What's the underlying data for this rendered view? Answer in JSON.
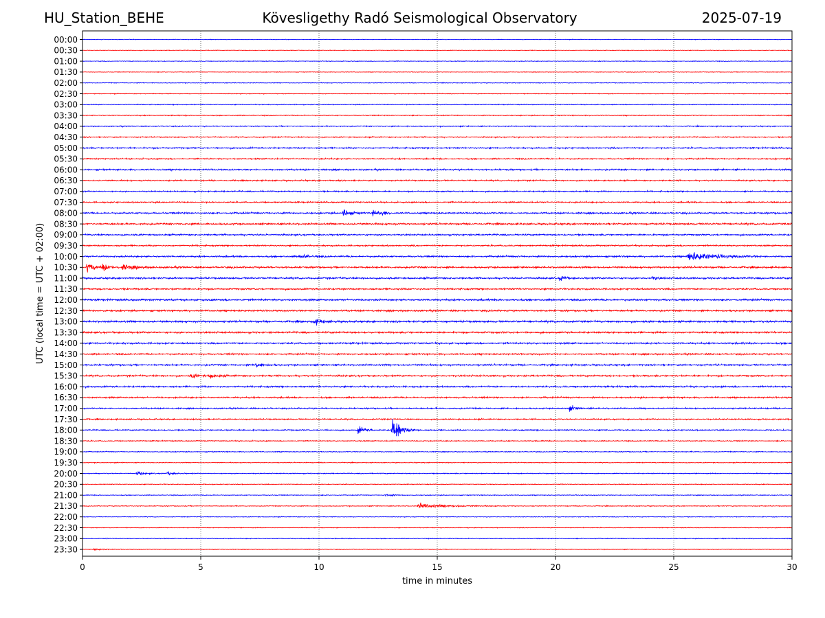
{
  "header": {
    "station": "HU_Station_BEHE",
    "title": "Kövesligethy Radó Seismological Observatory",
    "date": "2025-07-19"
  },
  "chart_data": {
    "type": "line",
    "title": "Kövesligethy Radó Seismological Observatory",
    "xlabel": "time in minutes",
    "ylabel": "UTC (local time = UTC + 02:00)",
    "xlim": [
      0,
      30
    ],
    "xticks": [
      "0",
      "5",
      "10",
      "15",
      "20",
      "25",
      "30"
    ],
    "grid": "vertical dotted lines at 5-minute intervals",
    "trace_colors": [
      "#0000ff",
      "#ff0000"
    ],
    "rows": [
      "00:00",
      "00:30",
      "01:00",
      "01:30",
      "02:00",
      "02:30",
      "03:00",
      "03:30",
      "04:00",
      "04:30",
      "05:00",
      "05:30",
      "06:00",
      "06:30",
      "07:00",
      "07:30",
      "08:00",
      "08:30",
      "09:00",
      "09:30",
      "10:00",
      "10:30",
      "11:00",
      "11:30",
      "12:00",
      "12:30",
      "13:00",
      "13:30",
      "14:00",
      "14:30",
      "15:00",
      "15:30",
      "16:00",
      "16:30",
      "17:00",
      "17:30",
      "18:00",
      "18:30",
      "19:00",
      "19:30",
      "20:00",
      "20:30",
      "21:00",
      "21:30",
      "22:00",
      "22:30",
      "23:00",
      "23:30"
    ],
    "noise_level": [
      0.5,
      0.5,
      0.6,
      0.5,
      0.6,
      0.6,
      0.7,
      0.8,
      0.9,
      1.0,
      1.3,
      1.2,
      1.4,
      1.2,
      1.2,
      1.3,
      1.5,
      1.6,
      1.4,
      1.3,
      1.5,
      1.6,
      1.5,
      1.4,
      1.6,
      1.5,
      1.7,
      1.6,
      1.5,
      1.4,
      1.5,
      1.5,
      1.5,
      1.4,
      1.2,
      1.1,
      1.1,
      0.9,
      0.8,
      0.7,
      0.8,
      0.7,
      0.7,
      0.7,
      0.6,
      0.6,
      0.6,
      0.5
    ],
    "events": [
      {
        "row": "08:00",
        "minute": 11.05,
        "amplitude": 11,
        "duration": 0.35
      },
      {
        "row": "08:00",
        "minute": 12.3,
        "amplitude": 6,
        "duration": 0.4
      },
      {
        "row": "08:00",
        "minute": 12.7,
        "amplitude": 4,
        "duration": 0.2
      },
      {
        "row": "10:00",
        "minute": 9.2,
        "amplitude": 4,
        "duration": 0.5
      },
      {
        "row": "10:00",
        "minute": 25.6,
        "amplitude": 9,
        "duration": 1.6
      },
      {
        "row": "10:30",
        "minute": 0.2,
        "amplitude": 8,
        "duration": 0.5
      },
      {
        "row": "10:30",
        "minute": 0.85,
        "amplitude": 6,
        "duration": 0.4
      },
      {
        "row": "10:30",
        "minute": 1.7,
        "amplitude": 5,
        "duration": 0.8
      },
      {
        "row": "11:00",
        "minute": 20.2,
        "amplitude": 6,
        "duration": 0.3
      },
      {
        "row": "11:00",
        "minute": 24.1,
        "amplitude": 4,
        "duration": 0.3
      },
      {
        "row": "13:00",
        "minute": 9.8,
        "amplitude": 6,
        "duration": 0.5
      },
      {
        "row": "15:00",
        "minute": 7.3,
        "amplitude": 6,
        "duration": 0.4
      },
      {
        "row": "15:30",
        "minute": 4.6,
        "amplitude": 4,
        "duration": 0.5
      },
      {
        "row": "15:30",
        "minute": 5.4,
        "amplitude": 4,
        "duration": 0.5
      },
      {
        "row": "17:00",
        "minute": 20.6,
        "amplitude": 5,
        "duration": 0.4
      },
      {
        "row": "18:00",
        "minute": 11.65,
        "amplitude": 8,
        "duration": 0.4
      },
      {
        "row": "18:00",
        "minute": 13.1,
        "amplitude": 26,
        "duration": 0.5
      },
      {
        "row": "20:00",
        "minute": 2.3,
        "amplitude": 3,
        "duration": 0.5
      },
      {
        "row": "20:00",
        "minute": 3.6,
        "amplitude": 3,
        "duration": 0.5
      },
      {
        "row": "21:00",
        "minute": 12.8,
        "amplitude": 3,
        "duration": 0.4
      },
      {
        "row": "21:30",
        "minute": 14.2,
        "amplitude": 5,
        "duration": 1.8
      },
      {
        "row": "23:30",
        "minute": 0.5,
        "amplitude": 2,
        "duration": 0.5
      }
    ]
  }
}
